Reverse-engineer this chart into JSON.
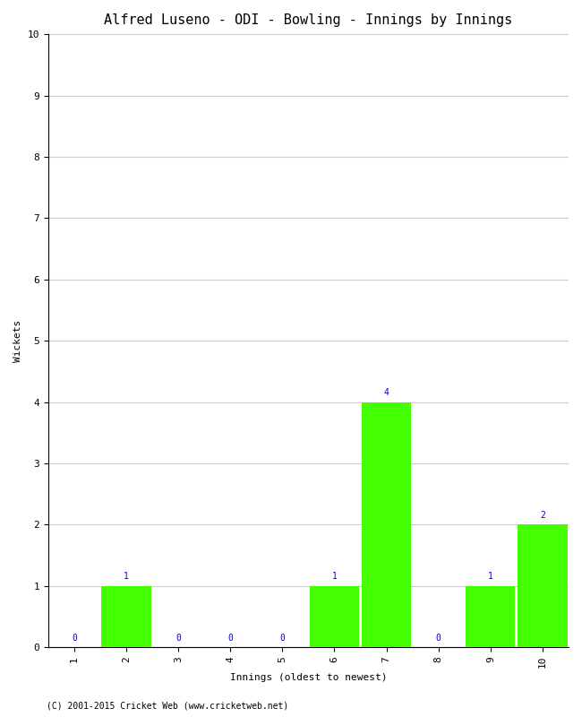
{
  "title": "Alfred Luseno - ODI - Bowling - Innings by Innings",
  "xlabel": "Innings (oldest to newest)",
  "ylabel": "Wickets",
  "innings": [
    1,
    2,
    3,
    4,
    5,
    6,
    7,
    8,
    9,
    10
  ],
  "wickets": [
    0,
    1,
    0,
    0,
    0,
    1,
    4,
    0,
    1,
    2
  ],
  "bar_color": "#44ff00",
  "label_color": "#0000cc",
  "ylim": [
    0,
    10
  ],
  "yticks": [
    0,
    1,
    2,
    3,
    4,
    5,
    6,
    7,
    8,
    9,
    10
  ],
  "background_color": "#ffffff",
  "grid_color": "#cccccc",
  "title_fontsize": 11,
  "axis_label_fontsize": 8,
  "tick_fontsize": 8,
  "bar_label_fontsize": 7,
  "copyright": "(C) 2001-2015 Cricket Web (www.cricketweb.net)",
  "copyright_fontsize": 7
}
